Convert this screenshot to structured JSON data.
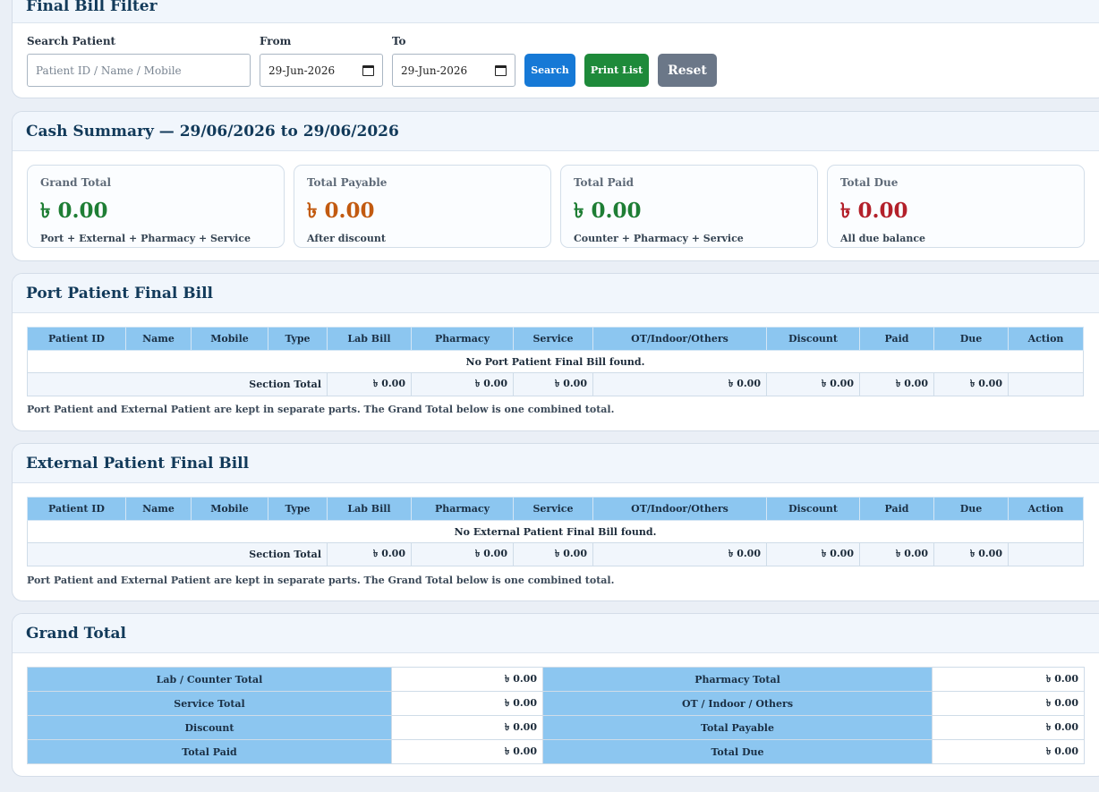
{
  "filter": {
    "title": "Final Bill Filter",
    "search_label": "Search Patient",
    "search_placeholder": "Patient ID / Name / Mobile",
    "from_label": "From",
    "from_value": "29-Jun-2026",
    "to_label": "To",
    "to_value": "29-Jun-2026",
    "search_button": "Search",
    "print_button": "Print List",
    "reset_button": "Reset"
  },
  "summary": {
    "title": "Cash Summary — 29/06/2026 to 29/06/2026",
    "tiles": [
      {
        "title": "Grand Total",
        "value": "৳ 0.00",
        "note": "Port + External + Pharmacy + Service",
        "color": "#1e7e34"
      },
      {
        "title": "Total Payable",
        "value": "৳ 0.00",
        "note": "After discount",
        "color": "#c25a10"
      },
      {
        "title": "Total Paid",
        "value": "৳ 0.00",
        "note": "Counter + Pharmacy + Service",
        "color": "#1e7e34"
      },
      {
        "title": "Total Due",
        "value": "৳ 0.00",
        "note": "All due balance",
        "color": "#b3202a"
      }
    ]
  },
  "columns": [
    "Patient ID",
    "Name",
    "Mobile",
    "Type",
    "Lab Bill",
    "Pharmacy",
    "Service",
    "OT/Indoor/Others",
    "Discount",
    "Paid",
    "Due",
    "Action"
  ],
  "port": {
    "title": "Port Patient Final Bill",
    "empty_message": "No Port Patient Final Bill found.",
    "section_total_label": "Section Total",
    "totals": [
      "৳ 0.00",
      "৳ 0.00",
      "৳ 0.00",
      "৳ 0.00",
      "৳ 0.00",
      "৳ 0.00",
      "৳ 0.00"
    ],
    "note": "Port Patient and External Patient are kept in separate parts. The Grand Total below is one combined total."
  },
  "external": {
    "title": "External Patient Final Bill",
    "empty_message": "No External Patient Final Bill found.",
    "section_total_label": "Section Total",
    "totals": [
      "৳ 0.00",
      "৳ 0.00",
      "৳ 0.00",
      "৳ 0.00",
      "৳ 0.00",
      "৳ 0.00",
      "৳ 0.00"
    ],
    "note": "Port Patient and External Patient are kept in separate parts. The Grand Total below is one combined total."
  },
  "grand": {
    "title": "Grand Total",
    "rows": [
      {
        "l1": "Lab / Counter Total",
        "v1": "৳ 0.00",
        "l2": "Pharmacy Total",
        "v2": "৳ 0.00"
      },
      {
        "l1": "Service Total",
        "v1": "৳ 0.00",
        "l2": "OT / Indoor / Others",
        "v2": "৳ 0.00"
      },
      {
        "l1": "Discount",
        "v1": "৳ 0.00",
        "l2": "Total Payable",
        "v2": "৳ 0.00"
      },
      {
        "l1": "Total Paid",
        "v1": "৳ 0.00",
        "l2": "Total Due",
        "v2": "৳ 0.00"
      }
    ]
  },
  "colors": {
    "search_btn": "#1679d6",
    "print_btn": "#1e8a3a",
    "reset_btn": "#6b7788",
    "header_cell": "#8cc6f0"
  }
}
